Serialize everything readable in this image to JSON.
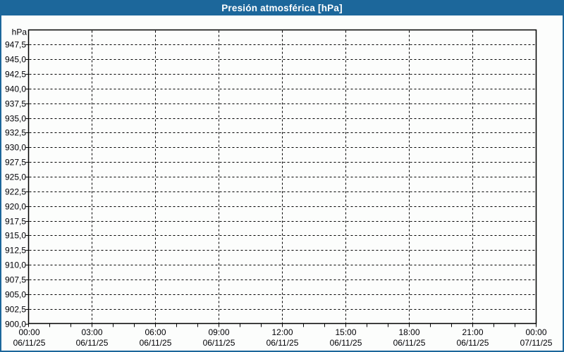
{
  "window": {
    "title": "Presión atmosférica [hPa]"
  },
  "colors": {
    "header_bg": "#1c679b",
    "frame_border": "#1c679b",
    "background": "#fcfdfc",
    "title_text": "#ffffff",
    "label_text": "#000005",
    "grid": "#000000"
  },
  "chart_data": {
    "type": "line",
    "title": "Presión atmosférica [hPa]",
    "unit_label": "hPa",
    "grid": true,
    "legend": "none",
    "series": [],
    "note_no_data_plotted": true,
    "ylim": [
      900,
      950
    ],
    "ytick_step": 2.5,
    "yticks": [
      947.5,
      945.0,
      942.5,
      940.0,
      937.5,
      935.0,
      932.5,
      930.0,
      927.5,
      925.0,
      922.5,
      920.0,
      917.5,
      915.0,
      912.5,
      910.0,
      907.5,
      905.0,
      902.5,
      900.0
    ],
    "ytick_labels": [
      "947,5",
      "945,0",
      "942,5",
      "940,0",
      "937,5",
      "935,0",
      "932,5",
      "930,0",
      "927,5",
      "925,0",
      "922,5",
      "920,0",
      "917,5",
      "915,0",
      "912,5",
      "910,0",
      "907,5",
      "905,0",
      "902,5",
      "900,0"
    ],
    "x_axis": {
      "hours_span": 24,
      "major_tick_hours": 3,
      "minor_tick_hours": 1,
      "labels": [
        {
          "time": "00:00",
          "date": "06/11/25"
        },
        {
          "time": "03:00",
          "date": "06/11/25"
        },
        {
          "time": "06:00",
          "date": "06/11/25"
        },
        {
          "time": "09:00",
          "date": "06/11/25"
        },
        {
          "time": "12:00",
          "date": "06/11/25"
        },
        {
          "time": "15:00",
          "date": "06/11/25"
        },
        {
          "time": "18:00",
          "date": "06/11/25"
        },
        {
          "time": "21:00",
          "date": "06/11/25"
        },
        {
          "time": "00:00",
          "date": "07/11/25"
        }
      ]
    }
  }
}
